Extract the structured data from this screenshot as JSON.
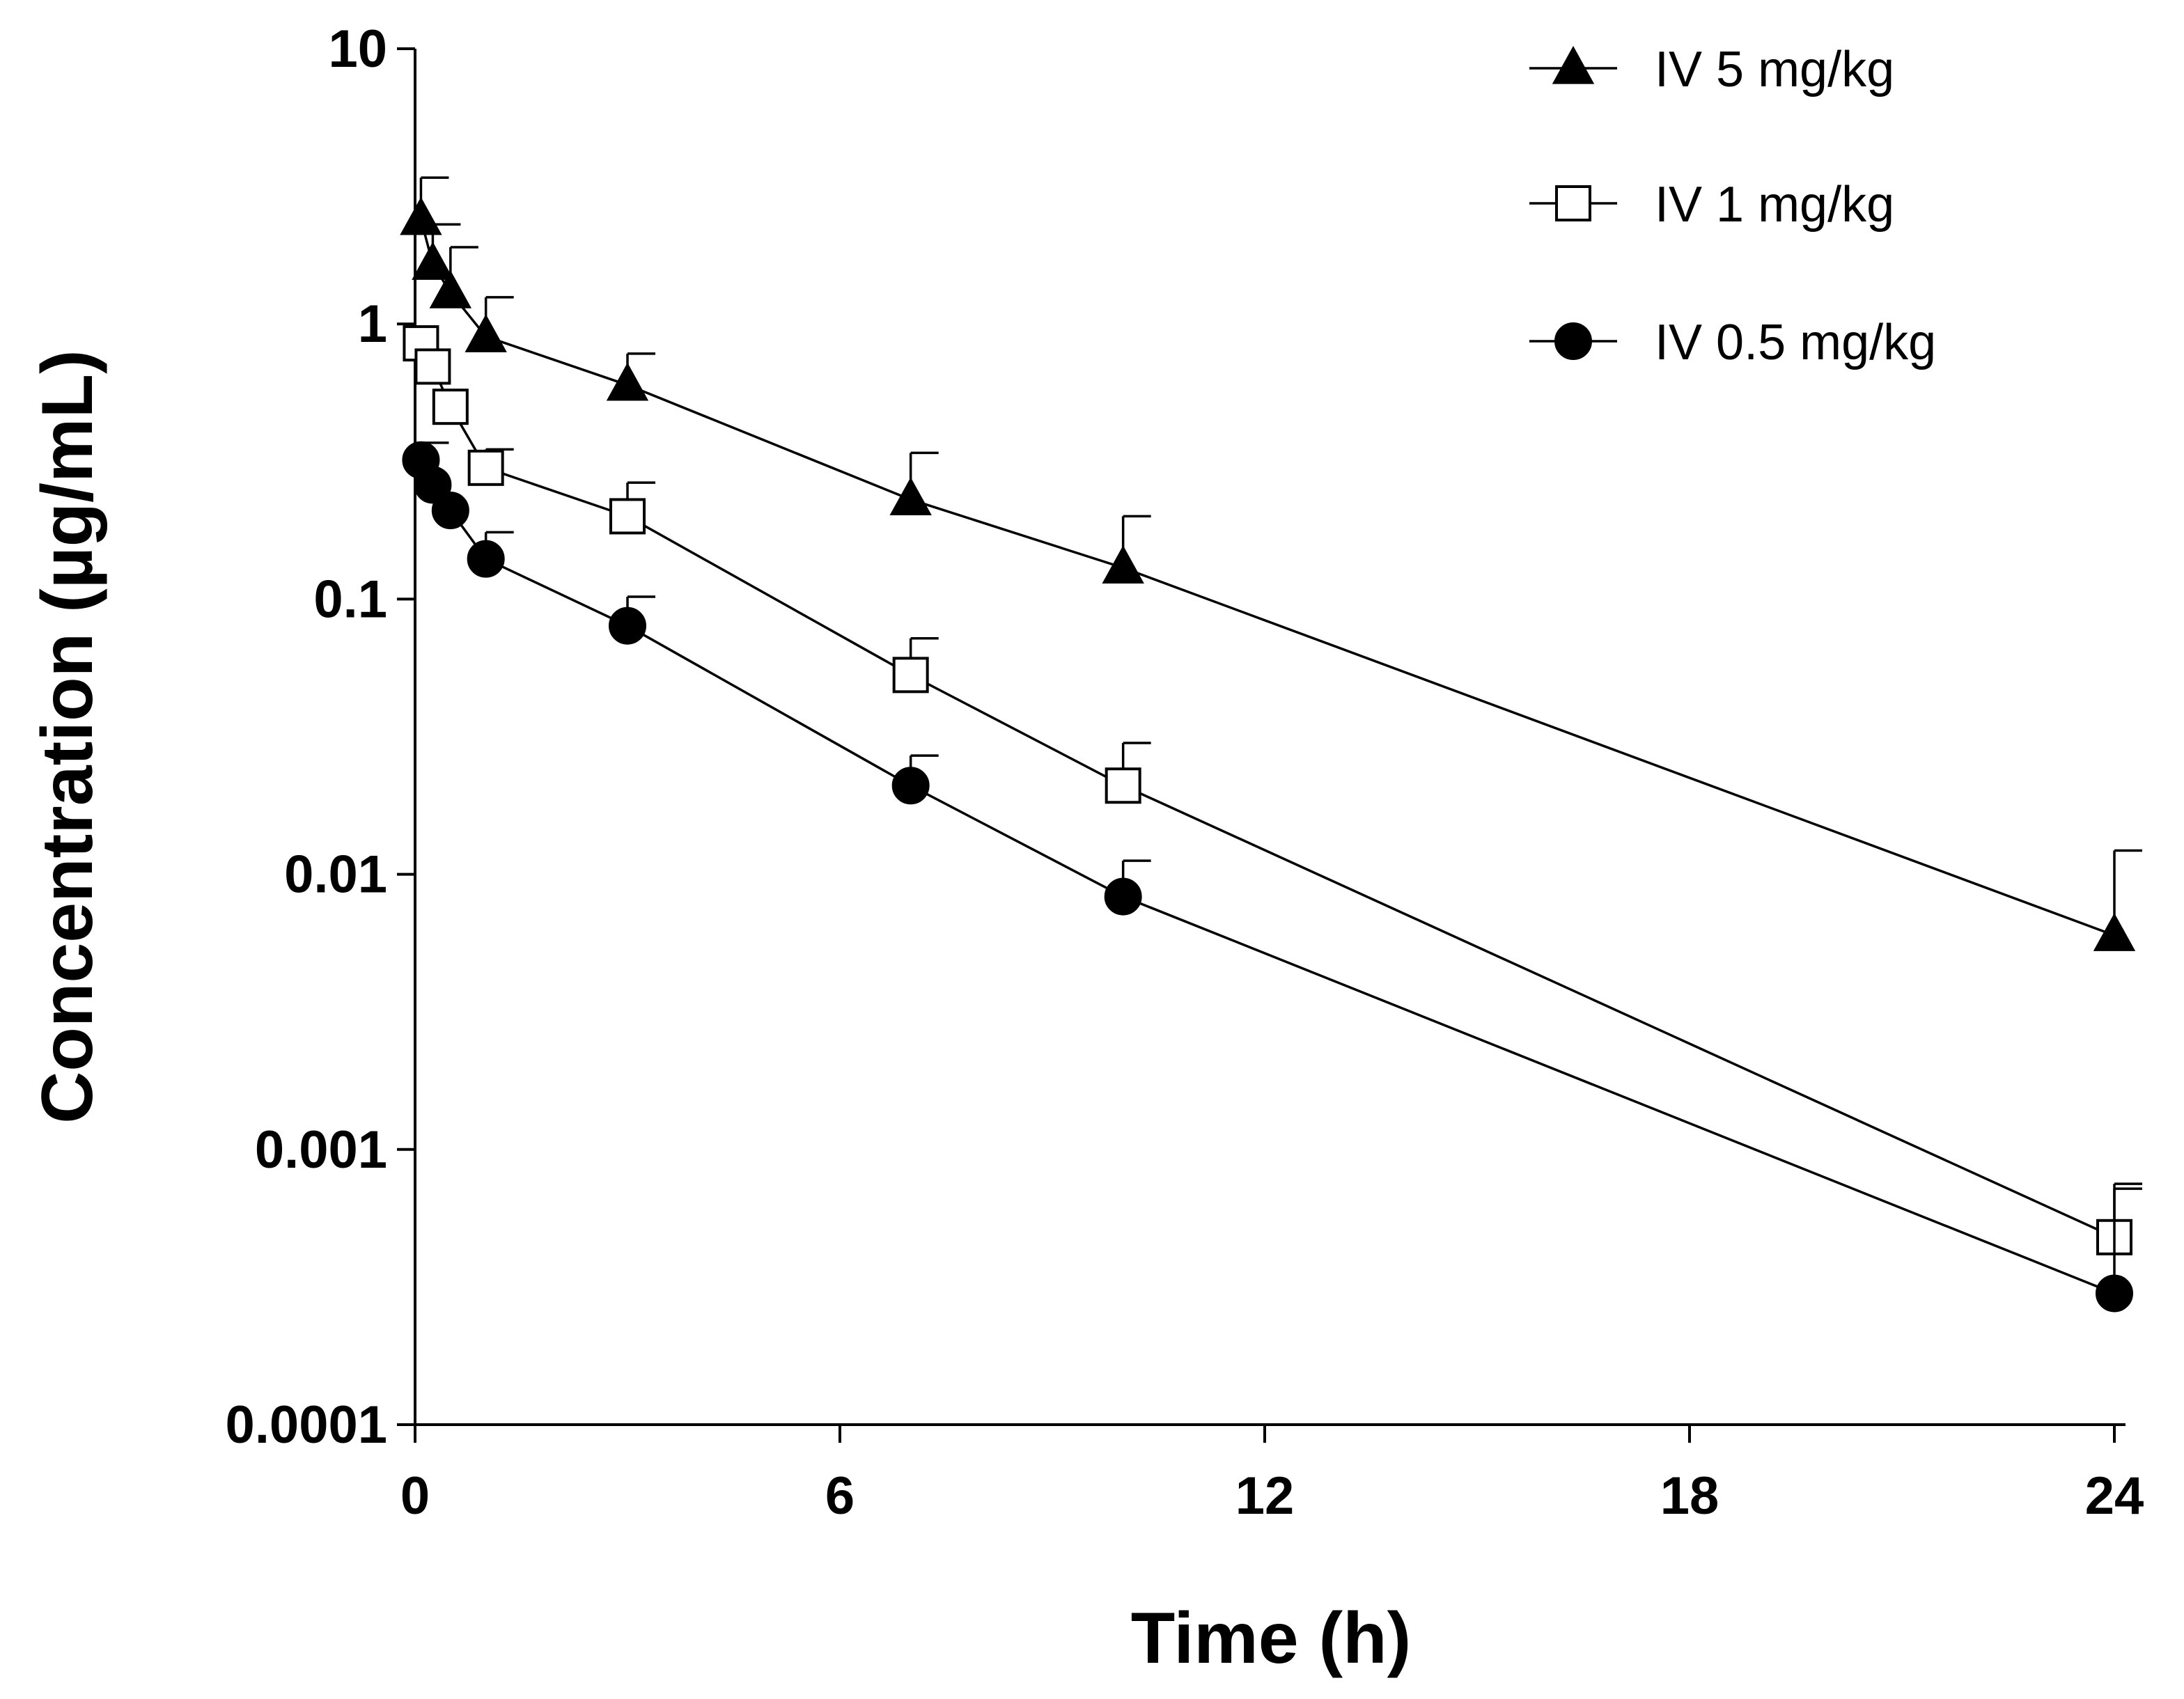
{
  "chart_data": {
    "type": "line",
    "title": "",
    "xlabel": "Time (h)",
    "ylabel": "Concentration (µg/mL)",
    "xlim": [
      0,
      24
    ],
    "ylim": [
      0.0001,
      10
    ],
    "yscale": "log",
    "grid": false,
    "legend_position": "top-right",
    "x_ticks": [
      0,
      6,
      12,
      18,
      24
    ],
    "x_tick_labels": [
      "0",
      "6",
      "12",
      "18",
      "24"
    ],
    "y_ticks": [
      0.0001,
      0.001,
      0.01,
      0.1,
      1,
      10
    ],
    "y_tick_labels": [
      "0.0001",
      "0.001",
      "0.01",
      "0.1",
      "1",
      "10"
    ],
    "series": [
      {
        "name": "IV 5 mg/kg",
        "marker": "filled-triangle",
        "x": [
          0.083,
          0.25,
          0.5,
          1,
          3,
          7,
          10,
          24
        ],
        "y": [
          2.4,
          1.65,
          1.3,
          0.9,
          0.6,
          0.23,
          0.13,
          0.006
        ],
        "err_upper": [
          3.4,
          2.3,
          1.9,
          1.25,
          0.78,
          0.34,
          0.2,
          0.0122
        ]
      },
      {
        "name": "IV 1 mg/kg",
        "marker": "open-square",
        "x": [
          0.083,
          0.25,
          0.5,
          1,
          3,
          7,
          10,
          24
        ],
        "y": [
          0.85,
          0.7,
          0.5,
          0.3,
          0.2,
          0.053,
          0.021,
          0.00048
        ],
        "err_upper": [
          0.85,
          0.7,
          0.5,
          0.35,
          0.265,
          0.072,
          0.03,
          0.00075
        ]
      },
      {
        "name": "IV 0.5 mg/kg",
        "marker": "filled-circle",
        "x": [
          0.083,
          0.25,
          0.5,
          1,
          3,
          7,
          10,
          24
        ],
        "y": [
          0.32,
          0.26,
          0.21,
          0.14,
          0.08,
          0.021,
          0.0083,
          0.0003
        ],
        "err_upper": [
          0.37,
          0.26,
          0.21,
          0.175,
          0.102,
          0.027,
          0.0112,
          0.00072
        ]
      }
    ]
  }
}
